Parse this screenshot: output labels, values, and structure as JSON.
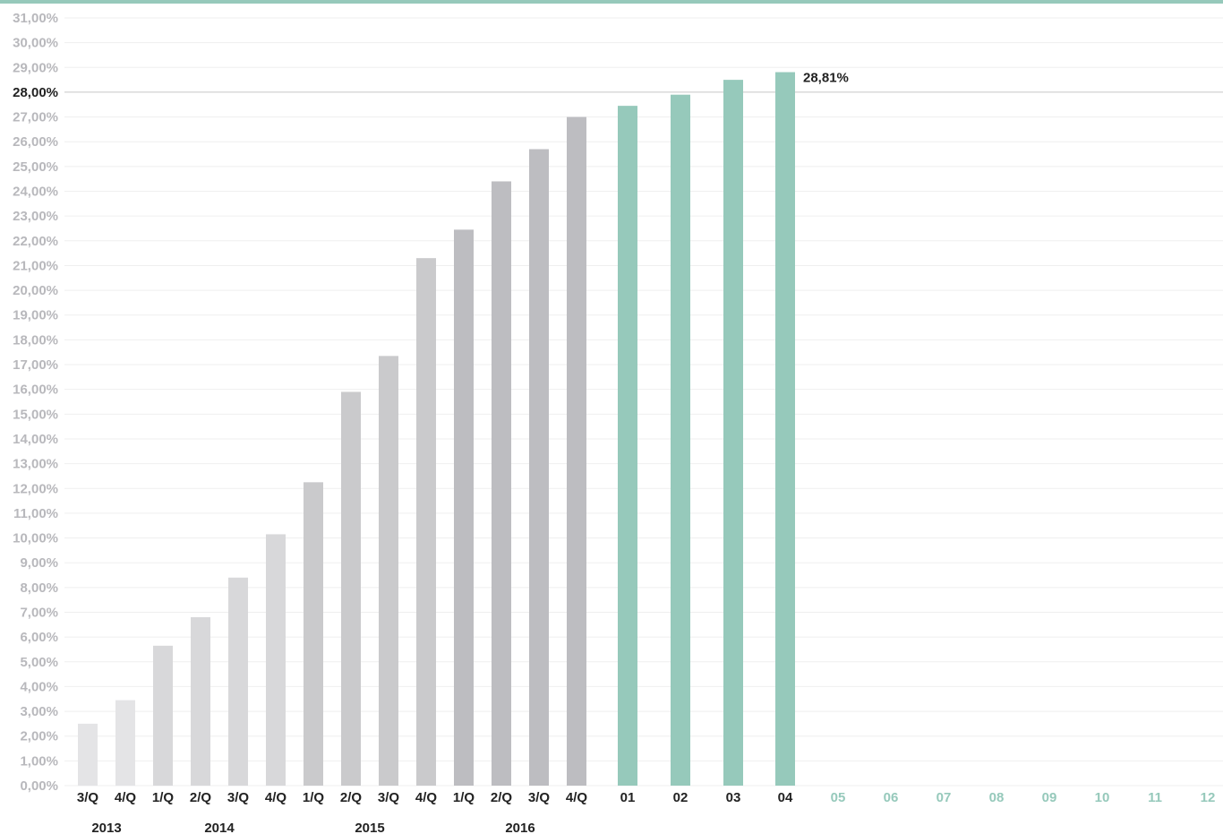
{
  "chart_data": {
    "type": "bar",
    "title": "",
    "xlabel": "",
    "ylabel": "",
    "ylim": [
      0,
      31
    ],
    "y_ticks": [
      "0,00%",
      "1,00%",
      "2,00%",
      "3,00%",
      "4,00%",
      "5,00%",
      "6,00%",
      "7,00%",
      "8,00%",
      "9,00%",
      "10,00%",
      "11,00%",
      "12,00%",
      "13,00%",
      "14,00%",
      "15,00%",
      "16,00%",
      "17,00%",
      "18,00%",
      "19,00%",
      "20,00%",
      "21,00%",
      "22,00%",
      "23,00%",
      "24,00%",
      "25,00%",
      "26,00%",
      "27,00%",
      "28,00%",
      "29,00%",
      "30,00%",
      "31,00%"
    ],
    "highlighted_tick": "28,00%",
    "grid": true,
    "reference_line": 28,
    "categories": [
      "3/Q",
      "4/Q",
      "1/Q",
      "2/Q",
      "3/Q",
      "4/Q",
      "1/Q",
      "2/Q",
      "3/Q",
      "4/Q",
      "1/Q",
      "2/Q",
      "3/Q",
      "4/Q",
      "01",
      "02",
      "03",
      "04",
      "05",
      "06",
      "07",
      "08",
      "09",
      "10",
      "11",
      "12"
    ],
    "values": [
      2.5,
      3.45,
      5.65,
      6.8,
      8.4,
      10.15,
      12.25,
      15.9,
      17.35,
      21.3,
      22.45,
      24.4,
      25.7,
      27.0,
      27.45,
      27.9,
      28.5,
      28.81,
      null,
      null,
      null,
      null,
      null,
      null,
      null,
      null
    ],
    "year_groups": [
      {
        "label": "2013",
        "start": 0,
        "end": 1
      },
      {
        "label": "2014",
        "start": 2,
        "end": 5
      },
      {
        "label": "2015",
        "start": 6,
        "end": 9
      },
      {
        "label": "2016",
        "start": 10,
        "end": 13
      }
    ],
    "annotation": {
      "index": 17,
      "text": "28,81%"
    },
    "colors": {
      "accent": "#96c9bb",
      "quarter_bars": [
        "#e4e4e6",
        "#e4e4e6",
        "#d8d8da",
        "#d8d8da",
        "#d8d8da",
        "#d8d8da",
        "#cacacc",
        "#cacacc",
        "#cacacc",
        "#cacacc",
        "#bdbdc1",
        "#bdbdc1",
        "#bdbdc1",
        "#bdbdc1"
      ],
      "tick_gray": "#b8b8bc",
      "tick_dark": "#222222",
      "empty_month_label": "#96c9bb"
    }
  }
}
